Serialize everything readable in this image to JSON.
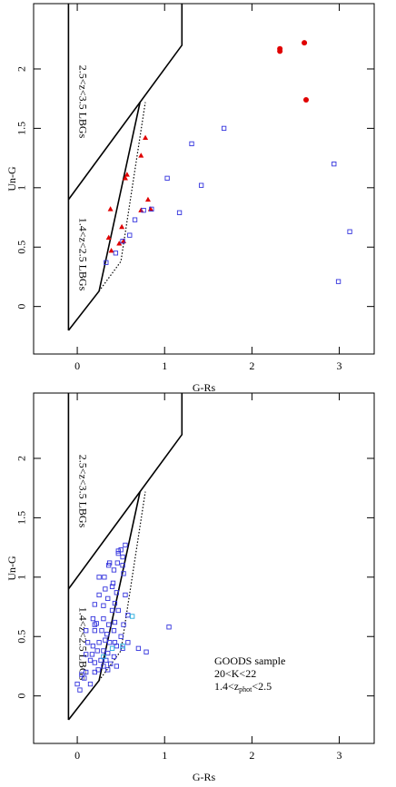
{
  "chart_data": [
    {
      "type": "scatter",
      "xlabel": "G-Rs",
      "ylabel": "Un-G",
      "xlim": [
        -0.5,
        3.4
      ],
      "ylim": [
        -0.4,
        2.55
      ],
      "xticks": [
        0,
        1,
        2,
        3
      ],
      "yticks": [
        0,
        0.5,
        1,
        1.5,
        2
      ],
      "region_labels": [
        "2.5<z<3.5 LBGs",
        "1.4<z<2.5 LBGs"
      ],
      "series": [
        {
          "marker": "circle",
          "color": "#e00000",
          "x": [
            2.32,
            2.32,
            2.6,
            2.62
          ],
          "values": [
            2.17,
            2.15,
            2.22,
            1.74
          ]
        },
        {
          "marker": "triangle",
          "color": "#e00000",
          "x": [
            0.38,
            0.36,
            0.39,
            0.48,
            0.53,
            0.51,
            0.55,
            0.57,
            0.73,
            0.78,
            0.81,
            0.73,
            0.84
          ],
          "values": [
            0.82,
            0.58,
            0.47,
            0.53,
            0.55,
            0.67,
            1.08,
            1.11,
            1.27,
            1.42,
            0.9,
            0.81,
            0.82
          ]
        },
        {
          "marker": "square",
          "color": "#3333dd",
          "x": [
            1.68,
            1.31,
            1.03,
            1.42,
            1.17,
            2.94,
            3.12,
            2.99,
            0.76,
            0.85,
            0.66,
            0.6,
            0.52,
            0.33,
            0.44
          ],
          "values": [
            1.5,
            1.37,
            1.08,
            1.02,
            0.79,
            1.2,
            0.63,
            0.21,
            0.81,
            0.82,
            0.73,
            0.6,
            0.55,
            0.37,
            0.45
          ]
        }
      ]
    },
    {
      "type": "scatter",
      "xlabel": "G-Rs",
      "ylabel": "Un-G",
      "xlim": [
        -0.5,
        3.4
      ],
      "ylim": [
        -0.4,
        2.55
      ],
      "xticks": [
        0,
        1,
        2,
        3
      ],
      "yticks": [
        0,
        0.5,
        1,
        1.5,
        2
      ],
      "region_labels": [
        "2.5<z<3.5 LBGs",
        "1.4<z<2.5 LBGs"
      ],
      "annotation": [
        "GOODS sample",
        "20<K<22"
      ],
      "annotation_parts": [
        "1.4<z",
        "phot",
        "<2.5"
      ],
      "series": [
        {
          "marker": "square",
          "color": "#3333dd",
          "x": [
            0.47,
            0.5,
            0.47,
            0.52,
            0.55,
            0.46,
            0.36,
            0.37,
            0.52,
            0.42,
            0.53,
            0.25,
            0.31,
            0.41,
            0.32,
            0.4,
            0.45,
            0.25,
            0.35,
            0.55,
            0.43,
            0.2,
            0.3,
            0.4,
            0.47,
            0.18,
            0.22,
            0.2,
            0.3,
            0.36,
            0.43,
            0.53,
            0.58,
            0.1,
            0.2,
            0.28,
            0.34,
            0.42,
            0.5,
            0.58,
            0.7,
            0.79,
            1.05,
            0.12,
            0.18,
            0.25,
            0.32,
            0.37,
            0.45,
            0.52,
            0.1,
            0.17,
            0.23,
            0.3,
            0.35,
            0.42,
            0.15,
            0.2,
            0.27,
            0.33,
            0.38,
            0.05,
            0.1,
            0.2,
            0.24,
            0.3,
            0.35,
            0.0,
            0.08,
            0.15,
            0.03,
            0.45,
            0.43
          ],
          "values": [
            1.22,
            1.23,
            1.2,
            1.17,
            1.27,
            1.12,
            1.1,
            1.12,
            1.1,
            1.06,
            1.03,
            1.0,
            1.0,
            0.95,
            0.9,
            0.92,
            0.87,
            0.85,
            0.82,
            0.85,
            0.78,
            0.77,
            0.76,
            0.72,
            0.72,
            0.65,
            0.61,
            0.6,
            0.65,
            0.6,
            0.62,
            0.6,
            0.68,
            0.55,
            0.55,
            0.55,
            0.52,
            0.55,
            0.5,
            0.45,
            0.4,
            0.37,
            0.58,
            0.45,
            0.42,
            0.45,
            0.47,
            0.45,
            0.42,
            0.4,
            0.35,
            0.35,
            0.38,
            0.38,
            0.36,
            0.33,
            0.3,
            0.28,
            0.3,
            0.3,
            0.27,
            0.18,
            0.2,
            0.2,
            0.22,
            0.25,
            0.22,
            0.1,
            0.15,
            0.1,
            0.05,
            0.25,
            0.45
          ]
        },
        {
          "marker": "square",
          "color": "#22aadd",
          "x": [
            0.52,
            0.63,
            0.4,
            0.3
          ],
          "values": [
            0.42,
            0.67,
            0.4,
            0.33
          ]
        }
      ]
    }
  ]
}
